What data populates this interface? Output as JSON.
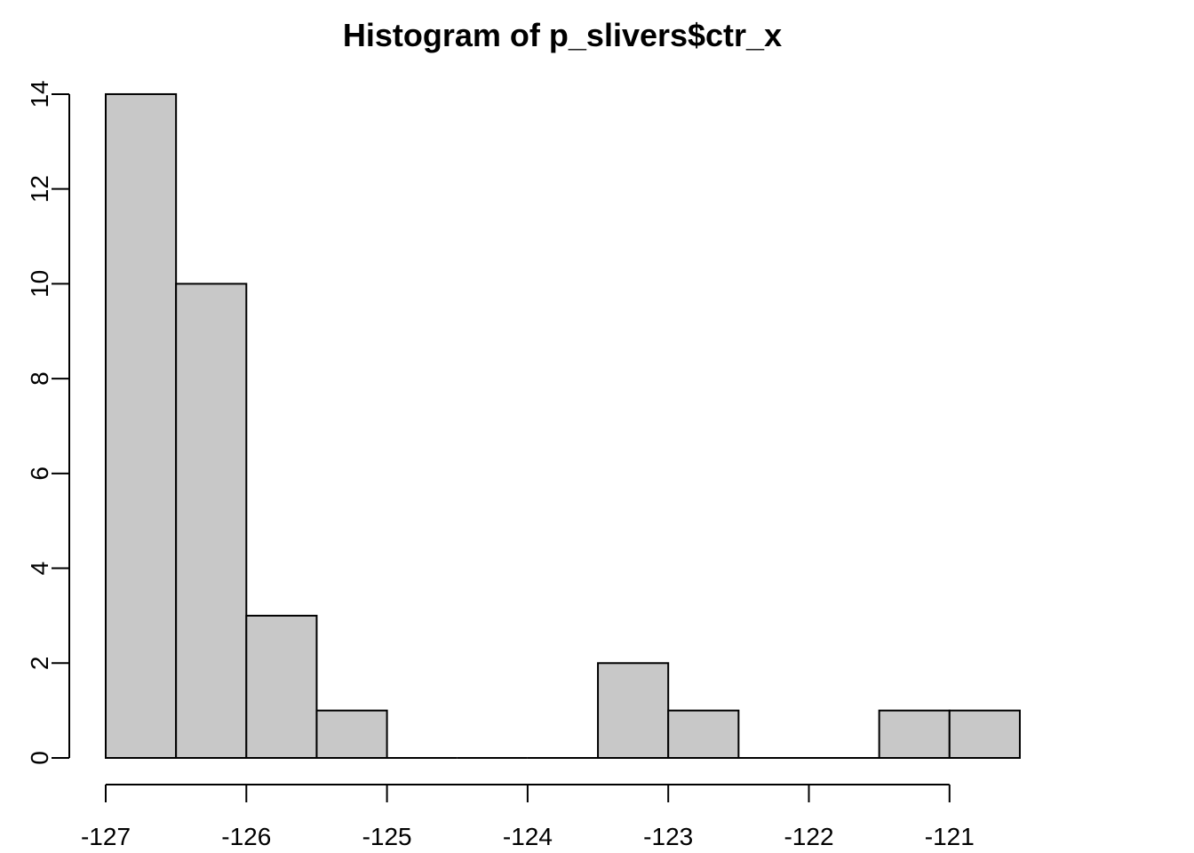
{
  "chart_data": {
    "type": "bar",
    "title": "Histogram of p_slivers$ctr_x",
    "xlabel": "",
    "ylabel": "",
    "bin_width": 0.5,
    "bins": [
      {
        "start": -127.0,
        "end": -126.5,
        "count": 14
      },
      {
        "start": -126.5,
        "end": -126.0,
        "count": 10
      },
      {
        "start": -126.0,
        "end": -125.5,
        "count": 3
      },
      {
        "start": -125.5,
        "end": -125.0,
        "count": 1
      },
      {
        "start": -125.0,
        "end": -124.5,
        "count": 0
      },
      {
        "start": -124.5,
        "end": -124.0,
        "count": 0
      },
      {
        "start": -124.0,
        "end": -123.5,
        "count": 0
      },
      {
        "start": -123.5,
        "end": -123.0,
        "count": 2
      },
      {
        "start": -123.0,
        "end": -122.5,
        "count": 1
      },
      {
        "start": -122.5,
        "end": -122.0,
        "count": 0
      },
      {
        "start": -122.0,
        "end": -121.5,
        "count": 0
      },
      {
        "start": -121.5,
        "end": -121.0,
        "count": 1
      },
      {
        "start": -121.0,
        "end": -120.5,
        "count": 1
      }
    ],
    "xlim": [
      -127,
      -120.5
    ],
    "ylim": [
      0,
      14
    ],
    "x_ticks": [
      -127,
      -126,
      -125,
      -124,
      -123,
      -122,
      -121
    ],
    "x_tick_labels": [
      "-127",
      "-126",
      "-125",
      "-124",
      "-123",
      "-122",
      "-121"
    ],
    "y_ticks": [
      0,
      2,
      4,
      6,
      8,
      10,
      12,
      14
    ],
    "y_tick_labels": [
      "0",
      "2",
      "4",
      "6",
      "8",
      "10",
      "12",
      "14"
    ],
    "grid": false,
    "legend": "none",
    "bar_color": "#c8c8c8",
    "edge_color": "#000000"
  }
}
